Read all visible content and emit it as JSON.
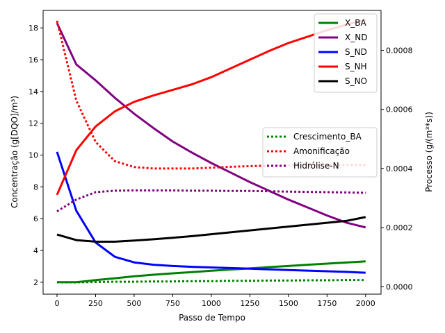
{
  "chart_data": {
    "type": "line",
    "xlabel": "Passo de Tempo",
    "ylabel_left": "Concentração (g[DQO]/m³)",
    "ylabel_right": "Processo (g/(m³*s))",
    "xlim": [
      -90,
      2100
    ],
    "ylim_left": [
      1.25,
      19.1
    ],
    "ylim_right": [
      -2.5e-05,
      0.000935
    ],
    "xticks": [
      0,
      250,
      500,
      750,
      1000,
      1250,
      1500,
      1750,
      2000
    ],
    "yticks_left": [
      2,
      4,
      6,
      8,
      10,
      12,
      14,
      16,
      18
    ],
    "yticks_left_labels": [
      "2",
      "4",
      "6",
      "8",
      "10",
      "12",
      "14",
      "16",
      "18"
    ],
    "yticks_right": [
      0.0,
      0.0002,
      0.0004,
      0.0006,
      0.0008
    ],
    "yticks_right_labels": [
      "0.0000",
      "0.0002",
      "0.0004",
      "0.0006",
      "0.0008"
    ],
    "legend_left_placement": "upper right",
    "legend_right_placement": "center right",
    "x": [
      0,
      125,
      250,
      375,
      500,
      625,
      750,
      875,
      1000,
      1125,
      1250,
      1375,
      1500,
      1625,
      1750,
      1875,
      2000
    ],
    "series_left": [
      {
        "name": "X_BA",
        "color": "#008000",
        "dash": "solid",
        "values": [
          2.0,
          2.0,
          2.13,
          2.25,
          2.37,
          2.47,
          2.56,
          2.64,
          2.72,
          2.8,
          2.87,
          2.95,
          3.02,
          3.1,
          3.17,
          3.24,
          3.31
        ]
      },
      {
        "name": "X_ND",
        "color": "#800080",
        "dash": "solid",
        "values": [
          18.3,
          15.7,
          14.7,
          13.6,
          12.6,
          11.7,
          10.85,
          10.15,
          9.5,
          8.9,
          8.3,
          7.75,
          7.2,
          6.7,
          6.2,
          5.75,
          5.45
        ]
      },
      {
        "name": "S_ND",
        "color": "#0000ff",
        "dash": "solid",
        "values": [
          10.2,
          6.5,
          4.5,
          3.6,
          3.25,
          3.1,
          3.02,
          2.97,
          2.93,
          2.89,
          2.85,
          2.81,
          2.77,
          2.73,
          2.69,
          2.65,
          2.6
        ]
      },
      {
        "name": "S_NH",
        "color": "#ff0000",
        "dash": "solid",
        "values": [
          7.5,
          10.3,
          11.8,
          12.75,
          13.35,
          13.75,
          14.1,
          14.45,
          14.9,
          15.45,
          16.0,
          16.55,
          17.05,
          17.45,
          17.85,
          18.2,
          18.5
        ]
      },
      {
        "name": "S_NO",
        "color": "#000000",
        "dash": "solid",
        "values": [
          5.0,
          4.65,
          4.55,
          4.55,
          4.62,
          4.7,
          4.8,
          4.9,
          5.02,
          5.14,
          5.26,
          5.38,
          5.5,
          5.62,
          5.74,
          5.86,
          6.1
        ]
      }
    ],
    "series_right": [
      {
        "name": "Crescimento_BA",
        "color": "#008000",
        "dash": "dotted",
        "values": [
          1.5e-05,
          1.5e-05,
          1.6e-05,
          1.7e-05,
          1.7e-05,
          1.8e-05,
          1.8e-05,
          1.9e-05,
          1.9e-05,
          2e-05,
          2e-05,
          2.1e-05,
          2.1e-05,
          2.2e-05,
          2.2e-05,
          2.3e-05,
          2.3e-05
        ]
      },
      {
        "name": "Amonificação",
        "color": "#ff0000",
        "dash": "dotted",
        "values": [
          0.0009,
          0.00063,
          0.00049,
          0.000425,
          0.000405,
          0.0004,
          0.0004,
          0.0004,
          0.000403,
          0.000406,
          0.000408,
          0.00041,
          0.000411,
          0.000412,
          0.000412,
          0.000412,
          0.000412
        ]
      },
      {
        "name": "Hidrólise-N",
        "color": "#800080",
        "dash": "dotted",
        "values": [
          0.000255,
          0.000295,
          0.00032,
          0.000325,
          0.000326,
          0.000326,
          0.000326,
          0.000325,
          0.000325,
          0.000324,
          0.000324,
          0.000323,
          0.000322,
          0.000321,
          0.00032,
          0.000319,
          0.000318
        ]
      }
    ]
  }
}
